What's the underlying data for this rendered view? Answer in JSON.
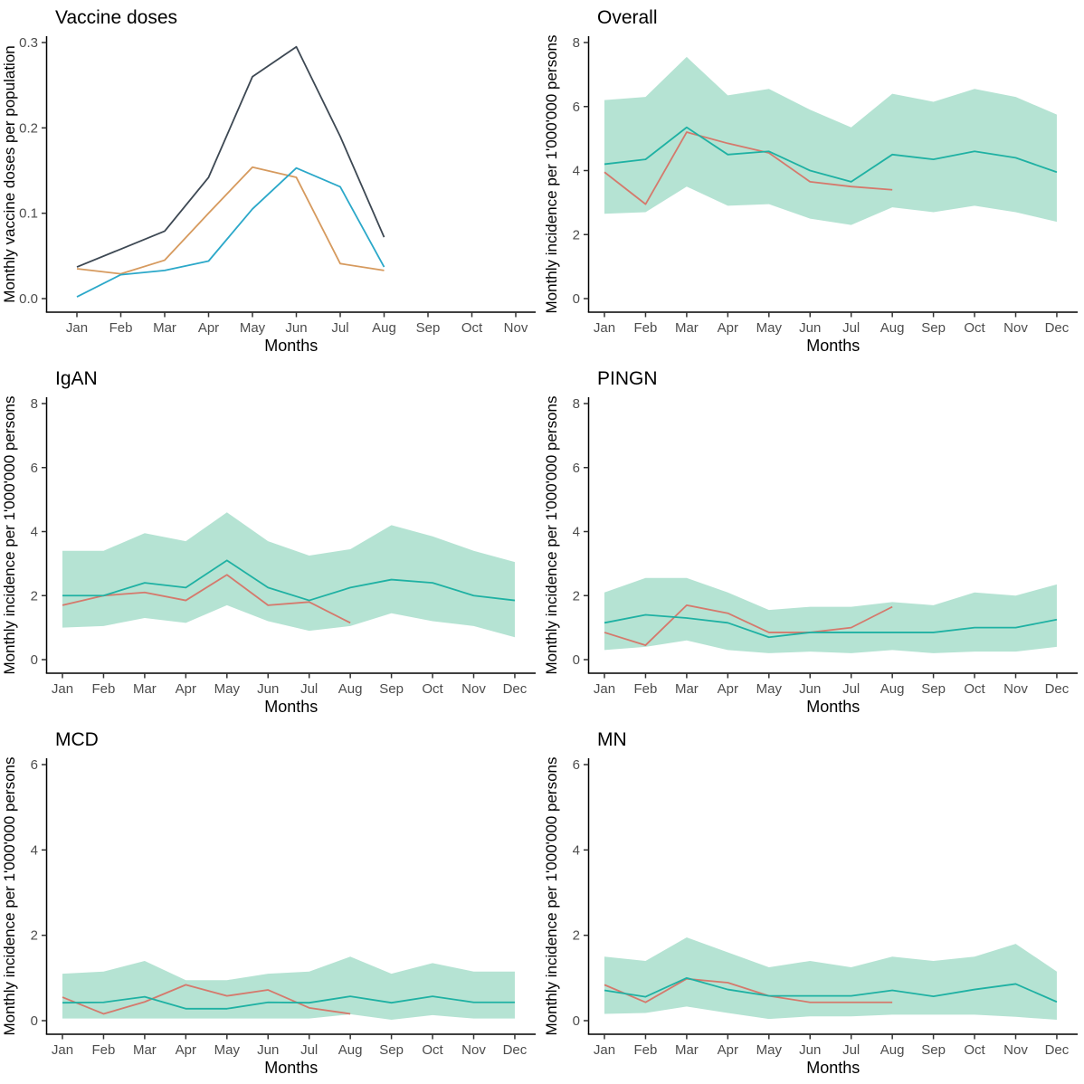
{
  "figure": {
    "background": "#ffffff",
    "panels_order": [
      "Vaccine doses",
      "Overall",
      "IgAN",
      "PINGN",
      "MCD",
      "MN"
    ]
  },
  "palette": {
    "ribbon_fill": "#b5e3d3",
    "teal_line": "#1fb1a3",
    "red_line": "#d5796c",
    "dark_line": "#3d4853",
    "orange_line": "#d69a5e",
    "blue_line": "#2ba8c9",
    "axis_color": "#000000",
    "tick_label_color": "#4d4d4d"
  },
  "chart_data": [
    {
      "type": "line",
      "title": "Vaccine doses",
      "xlabel": "Months",
      "ylabel": "Monthly vaccine doses per population",
      "categories": [
        "Jan",
        "Feb",
        "Mar",
        "Apr",
        "May",
        "Jun",
        "Jul",
        "Aug",
        "Sep",
        "Oct",
        "Nov"
      ],
      "ylim": [
        0,
        0.3
      ],
      "y_tick_values": [
        0,
        0.1,
        0.2,
        0.3
      ],
      "y_tick_labels": [
        "0.0",
        "0.1",
        "0.2",
        "0.3"
      ],
      "grid": false,
      "legend": "none",
      "series": [
        {
          "name": "dark",
          "color": "#3d4853",
          "values": [
            0.037,
            0.058,
            0.079,
            0.142,
            0.26,
            0.295,
            0.19,
            0.072
          ]
        },
        {
          "name": "orange",
          "color": "#d69a5e",
          "values": [
            0.035,
            0.029,
            0.045,
            0.1,
            0.154,
            0.142,
            0.041,
            0.033
          ]
        },
        {
          "name": "blue",
          "color": "#2ba8c9",
          "values": [
            0.002,
            0.028,
            0.033,
            0.044,
            0.105,
            0.153,
            0.131,
            0.037
          ]
        }
      ]
    },
    {
      "type": "line",
      "title": "Overall",
      "xlabel": "Months",
      "ylabel": "Monthly incidence per 1'000'000 persons",
      "categories": [
        "Jan",
        "Feb",
        "Mar",
        "Apr",
        "May",
        "Jun",
        "Jul",
        "Aug",
        "Sep",
        "Oct",
        "Nov",
        "Dec"
      ],
      "ylim": [
        0,
        8
      ],
      "y_tick_values": [
        0,
        2,
        4,
        6,
        8
      ],
      "y_tick_labels": [
        "0",
        "2",
        "4",
        "6",
        "8"
      ],
      "grid": false,
      "legend": "none",
      "ribbon": {
        "fill": "#b5e3d3",
        "upper": [
          6.2,
          6.3,
          7.55,
          6.35,
          6.55,
          5.9,
          5.35,
          6.4,
          6.15,
          6.55,
          6.3,
          5.75
        ],
        "lower": [
          2.65,
          2.7,
          3.5,
          2.9,
          2.95,
          2.5,
          2.3,
          2.85,
          2.7,
          2.9,
          2.7,
          2.4
        ]
      },
      "series": [
        {
          "name": "red",
          "color": "#d5796c",
          "values": [
            3.95,
            2.95,
            5.2,
            4.85,
            4.55,
            3.65,
            3.5,
            3.4
          ]
        },
        {
          "name": "teal",
          "color": "#1fb1a3",
          "values": [
            4.2,
            4.35,
            5.35,
            4.5,
            4.6,
            4.0,
            3.65,
            4.5,
            4.35,
            4.6,
            4.4,
            3.95
          ]
        }
      ]
    },
    {
      "type": "line",
      "title": "IgAN",
      "xlabel": "Months",
      "ylabel": "Monthly incidence per 1'000'000 persons",
      "categories": [
        "Jan",
        "Feb",
        "Mar",
        "Apr",
        "May",
        "Jun",
        "Jul",
        "Aug",
        "Sep",
        "Oct",
        "Nov",
        "Dec"
      ],
      "ylim": [
        0,
        8
      ],
      "y_tick_values": [
        0,
        2,
        4,
        6,
        8
      ],
      "y_tick_labels": [
        "0",
        "2",
        "4",
        "6",
        "8"
      ],
      "grid": false,
      "legend": "none",
      "ribbon": {
        "fill": "#b5e3d3",
        "upper": [
          3.4,
          3.4,
          3.95,
          3.7,
          4.6,
          3.7,
          3.25,
          3.45,
          4.2,
          3.85,
          3.4,
          3.05
        ],
        "lower": [
          1.0,
          1.05,
          1.3,
          1.15,
          1.7,
          1.2,
          0.9,
          1.05,
          1.45,
          1.2,
          1.05,
          0.7
        ]
      },
      "series": [
        {
          "name": "red",
          "color": "#d5796c",
          "values": [
            1.7,
            2.0,
            2.1,
            1.85,
            2.65,
            1.7,
            1.8,
            1.15
          ]
        },
        {
          "name": "teal",
          "color": "#1fb1a3",
          "values": [
            2.0,
            2.0,
            2.4,
            2.25,
            3.1,
            2.25,
            1.85,
            2.25,
            2.5,
            2.4,
            2.0,
            1.85
          ]
        }
      ]
    },
    {
      "type": "line",
      "title": "PINGN",
      "xlabel": "Months",
      "ylabel": "Monthly incidence per 1'000'000 persons",
      "categories": [
        "Jan",
        "Feb",
        "Mar",
        "Apr",
        "May",
        "Jun",
        "Jul",
        "Aug",
        "Sep",
        "Oct",
        "Nov",
        "Dec"
      ],
      "ylim": [
        0,
        8
      ],
      "y_tick_values": [
        0,
        2,
        4,
        6,
        8
      ],
      "y_tick_labels": [
        "0",
        "2",
        "4",
        "6",
        "8"
      ],
      "grid": false,
      "legend": "none",
      "ribbon": {
        "fill": "#b5e3d3",
        "upper": [
          2.1,
          2.55,
          2.55,
          2.1,
          1.55,
          1.65,
          1.65,
          1.8,
          1.7,
          2.1,
          2.0,
          2.35
        ],
        "lower": [
          0.3,
          0.4,
          0.6,
          0.3,
          0.2,
          0.25,
          0.2,
          0.3,
          0.2,
          0.25,
          0.25,
          0.4
        ]
      },
      "series": [
        {
          "name": "red",
          "color": "#d5796c",
          "values": [
            0.85,
            0.45,
            1.7,
            1.45,
            0.85,
            0.85,
            1.0,
            1.65
          ]
        },
        {
          "name": "teal",
          "color": "#1fb1a3",
          "values": [
            1.15,
            1.4,
            1.3,
            1.15,
            0.7,
            0.85,
            0.85,
            0.85,
            0.85,
            1.0,
            1.0,
            1.25
          ]
        }
      ]
    },
    {
      "type": "line",
      "title": "MCD",
      "xlabel": "Months",
      "ylabel": "Monthly incidence per 1'000'000 persons",
      "categories": [
        "Jan",
        "Feb",
        "Mar",
        "Apr",
        "May",
        "Jun",
        "Jul",
        "Aug",
        "Sep",
        "Oct",
        "Nov",
        "Dec"
      ],
      "ylim": [
        0,
        6
      ],
      "y_tick_values": [
        0,
        2,
        4,
        6
      ],
      "y_tick_labels": [
        "0",
        "2",
        "4",
        "6"
      ],
      "grid": false,
      "legend": "none",
      "ribbon": {
        "fill": "#b5e3d3",
        "upper": [
          1.1,
          1.15,
          1.4,
          0.95,
          0.95,
          1.1,
          1.15,
          1.5,
          1.1,
          1.35,
          1.15,
          1.15
        ],
        "lower": [
          0.05,
          0.05,
          0.05,
          0.05,
          0.05,
          0.05,
          0.05,
          0.15,
          0.02,
          0.13,
          0.05,
          0.05
        ]
      },
      "series": [
        {
          "name": "red",
          "color": "#d5796c",
          "values": [
            0.55,
            0.16,
            0.44,
            0.84,
            0.58,
            0.72,
            0.3,
            0.16
          ]
        },
        {
          "name": "teal",
          "color": "#1fb1a3",
          "values": [
            0.42,
            0.43,
            0.56,
            0.28,
            0.28,
            0.43,
            0.42,
            0.57,
            0.42,
            0.57,
            0.43,
            0.43
          ]
        }
      ]
    },
    {
      "type": "line",
      "title": "MN",
      "xlabel": "Months",
      "ylabel": "Monthly incidence per 1'000'000 persons",
      "categories": [
        "Jan",
        "Feb",
        "Mar",
        "Apr",
        "May",
        "Jun",
        "Jul",
        "Aug",
        "Sep",
        "Oct",
        "Nov",
        "Dec"
      ],
      "ylim": [
        0,
        6
      ],
      "y_tick_values": [
        0,
        2,
        4,
        6
      ],
      "y_tick_labels": [
        "0",
        "2",
        "4",
        "6"
      ],
      "grid": false,
      "legend": "none",
      "ribbon": {
        "fill": "#b5e3d3",
        "upper": [
          1.5,
          1.4,
          1.95,
          1.6,
          1.25,
          1.4,
          1.25,
          1.5,
          1.4,
          1.5,
          1.8,
          1.15
        ],
        "lower": [
          0.16,
          0.18,
          0.33,
          0.18,
          0.04,
          0.1,
          0.1,
          0.14,
          0.14,
          0.14,
          0.09,
          0.02
        ]
      },
      "series": [
        {
          "name": "red",
          "color": "#d5796c",
          "values": [
            0.84,
            0.43,
            0.98,
            0.89,
            0.58,
            0.43,
            0.43,
            0.43
          ]
        },
        {
          "name": "teal",
          "color": "#1fb1a3",
          "values": [
            0.71,
            0.56,
            1.0,
            0.73,
            0.58,
            0.58,
            0.58,
            0.71,
            0.57,
            0.73,
            0.86,
            0.44
          ]
        }
      ]
    }
  ]
}
